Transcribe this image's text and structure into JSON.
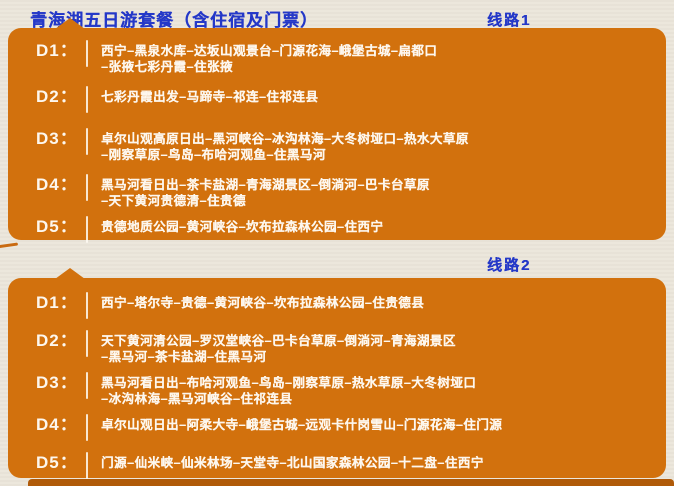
{
  "title": "青海湖五日游套餐（含住宿及门票）",
  "colors": {
    "background": "#ece7db",
    "panel_orange": "#d2710d",
    "panel_shadow_orange": "#b05a08",
    "heading_blue": "#2438c8",
    "text_white": "#fdf7ee"
  },
  "routes": [
    {
      "label": "线路1",
      "days": [
        {
          "day": "D1：",
          "itinerary": "西宁–黑泉水库–达坂山观景台–门源花海–峨堡古城–扁都口\n–张掖七彩丹霞–住张掖"
        },
        {
          "day": "D2：",
          "itinerary": "七彩丹霞出发–马蹄寺–祁连–住祁连县"
        },
        {
          "day": "D3：",
          "itinerary": "卓尔山观高原日出–黑河峡谷–冰沟林海–大冬树垭口–热水大草原\n–刚察草原–鸟岛–布哈河观鱼–住黑马河"
        },
        {
          "day": "D4：",
          "itinerary": "黑马河看日出–茶卡盐湖–青海湖景区–倒淌河–巴卡台草原\n–天下黄河贵德清–住贵德"
        },
        {
          "day": "D5：",
          "itinerary": "贵德地质公园–黄河峡谷–坎布拉森林公园–住西宁"
        }
      ]
    },
    {
      "label": "线路2",
      "days": [
        {
          "day": "D1：",
          "itinerary": "西宁–塔尔寺–贵德–黄河峡谷–坎布拉森林公园–住贵德县"
        },
        {
          "day": "D2：",
          "itinerary": "天下黄河清公园–罗汉堂峡谷–巴卡台草原–倒淌河–青海湖景区\n–黑马河–茶卡盐湖–住黑马河"
        },
        {
          "day": "D3：",
          "itinerary": "黑马河看日出–布哈河观鱼–鸟岛–刚察草原–热水草原–大冬树垭口\n–冰沟林海–黑马河峡谷–住祁连县"
        },
        {
          "day": "D4：",
          "itinerary": "卓尔山观日出–阿柔大寺–峨堡古城–远观卡什岗雪山–门源花海–住门源"
        },
        {
          "day": "D5：",
          "itinerary": "门源–仙米峡–仙米林场–天堂寺–北山国家森林公园–十二盘–住西宁"
        }
      ]
    }
  ]
}
